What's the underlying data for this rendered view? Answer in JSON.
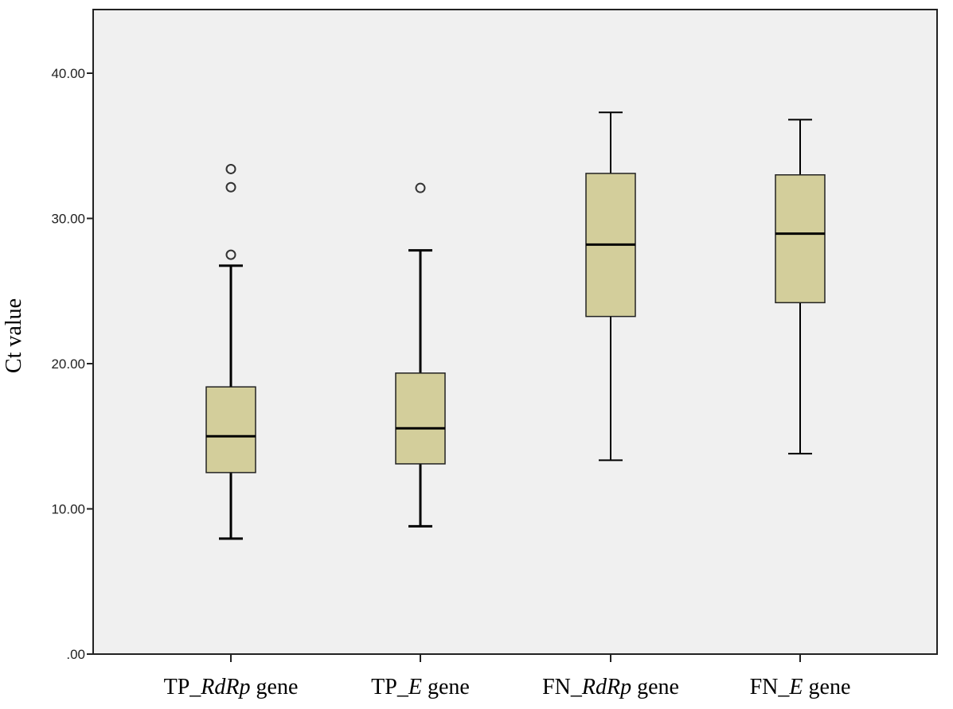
{
  "chart_data": {
    "type": "boxplot",
    "title": "",
    "xlabel": "",
    "ylabel": "Ct value",
    "ylim": [
      0,
      44
    ],
    "yticks": [
      0,
      10,
      20,
      30,
      40
    ],
    "ytick_labels": [
      ".00",
      "10.00",
      "20.00",
      "30.00",
      "40.00"
    ],
    "grid": false,
    "colors": {
      "plot_bg": "#f0f0f0",
      "box_fill": "#d3ce9b",
      "stroke": "#000000"
    },
    "categories": [
      {
        "pre": "TP_",
        "it": "RdRp",
        "post": " gene"
      },
      {
        "pre": "TP_",
        "it": "E",
        "post": " gene"
      },
      {
        "pre": "FN_",
        "it": "RdRp",
        "post": " gene"
      },
      {
        "pre": "FN_",
        "it": "E",
        "post": " gene"
      }
    ],
    "boxes": [
      {
        "min": 7.95,
        "q1": 12.5,
        "median": 15.0,
        "q3": 18.4,
        "max": 26.75,
        "outliers": [
          27.5,
          32.15,
          33.4
        ]
      },
      {
        "min": 8.8,
        "q1": 13.1,
        "median": 15.55,
        "q3": 19.35,
        "max": 27.8,
        "outliers": [
          32.1
        ]
      },
      {
        "min": 13.35,
        "q1": 23.25,
        "median": 28.2,
        "q3": 33.1,
        "max": 37.3,
        "outliers": []
      },
      {
        "min": 13.8,
        "q1": 24.2,
        "median": 28.95,
        "q3": 33.0,
        "max": 36.8,
        "outliers": []
      }
    ]
  }
}
